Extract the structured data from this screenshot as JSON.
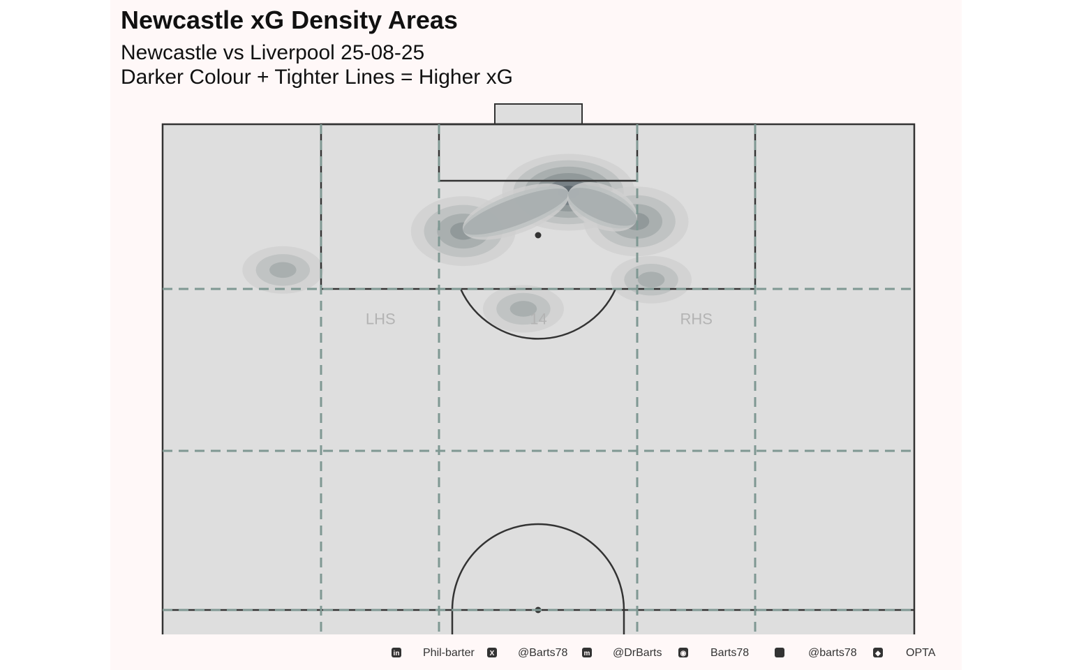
{
  "title": "Newcastle xG Density Areas",
  "subtitle_line1": "Newcastle vs Liverpool 25-08-25",
  "subtitle_line2": "Darker Colour + Tighter Lines = Higher xG",
  "chart_data": {
    "type": "heatmap",
    "description_kind": "xG kernel density contours on attacking half of pitch",
    "pitch_x_range": [
      0,
      100
    ],
    "pitch_y_range": [
      50,
      100
    ],
    "zone_labels": [
      {
        "text": "LHS",
        "x": 29,
        "y": 80
      },
      {
        "text": "14",
        "x": 50,
        "y": 80
      },
      {
        "text": "RHS",
        "x": 71,
        "y": 80
      }
    ],
    "density_peaks": [
      {
        "x": 54,
        "y": 93,
        "level": 5
      },
      {
        "x": 40,
        "y": 89,
        "level": 3
      },
      {
        "x": 63,
        "y": 90,
        "level": 3
      },
      {
        "x": 16,
        "y": 85,
        "level": 2
      },
      {
        "x": 65,
        "y": 84,
        "level": 2
      },
      {
        "x": 48,
        "y": 81,
        "level": 2
      }
    ],
    "colors": {
      "pitch": "#dedede",
      "lines": "#333333",
      "zones": "#7f9893",
      "density_levels": [
        "#cfcfcf",
        "#bcc0c0",
        "#a5abac",
        "#8d9597",
        "#737d82",
        "#5a656b"
      ]
    }
  },
  "caption": {
    "items": [
      {
        "icon": "linkedin-icon",
        "text": "Phil-barter"
      },
      {
        "icon": "x-twitter-icon",
        "text": "@Barts78"
      },
      {
        "icon": "mastodon-icon",
        "text": "@DrBarts"
      },
      {
        "icon": "github-icon",
        "text": "Barts78"
      },
      {
        "icon": "bluesky-icon",
        "text": "@barts78"
      },
      {
        "icon": "dropbox-icon",
        "text": "OPTA"
      }
    ]
  }
}
